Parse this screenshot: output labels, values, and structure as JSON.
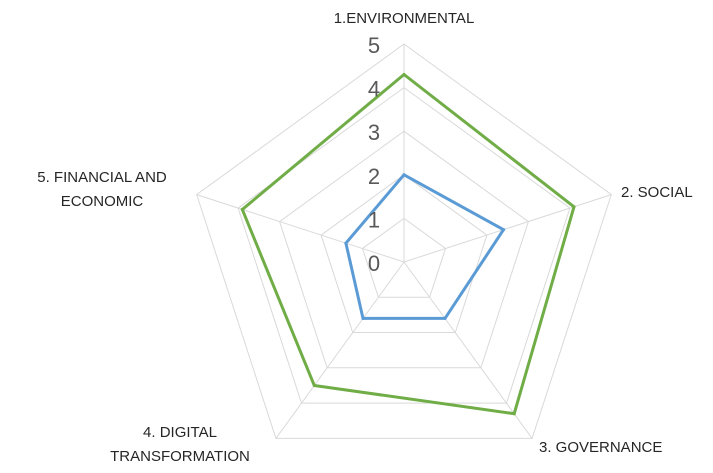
{
  "chart_data": {
    "type": "radar",
    "title": "",
    "categories": [
      "1.ENVIRONMENTAL",
      "2. SOCIAL",
      "3. GOVERNANCE",
      "4. DIGITAL TRANSFORMATION",
      "5. FINANCIAL AND ECONOMIC"
    ],
    "category_label_lines": [
      [
        "1.ENVIRONMENTAL"
      ],
      [
        "2. SOCIAL"
      ],
      [
        "3. GOVERNANCE"
      ],
      [
        "4. DIGITAL",
        "TRANSFORMATION"
      ],
      [
        "5. FINANCIAL AND",
        "ECONOMIC"
      ]
    ],
    "r_ticks": [
      "0",
      "1",
      "2",
      "3",
      "4",
      "5"
    ],
    "rlim": [
      0,
      5
    ],
    "grid": true,
    "legend": "none",
    "series": [
      {
        "values": [
          2.0,
          2.4,
          1.6,
          1.6,
          1.4
        ],
        "color": "#5b9bd5"
      },
      {
        "values": [
          4.3,
          4.1,
          4.3,
          3.5,
          3.9
        ],
        "color": "#70ad47"
      }
    ]
  }
}
